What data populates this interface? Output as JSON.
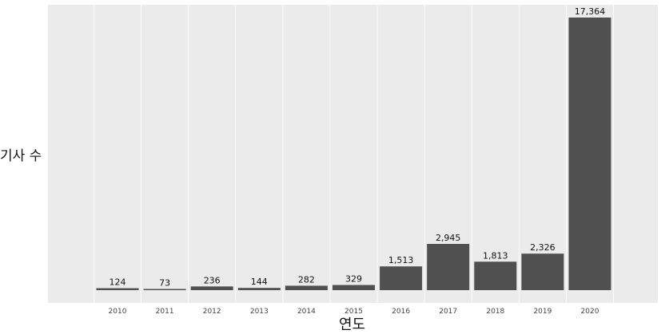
{
  "chart_data": {
    "type": "bar",
    "xlabel": "연도",
    "ylabel": "기사 수",
    "categories": [
      "2010",
      "2011",
      "2012",
      "2013",
      "2014",
      "2015",
      "2016",
      "2017",
      "2018",
      "2019",
      "2020"
    ],
    "values": [
      124,
      73,
      236,
      144,
      282,
      329,
      1513,
      2945,
      1813,
      2326,
      17364
    ],
    "data_labels": [
      "124",
      "73",
      "236",
      "144",
      "282",
      "329",
      "1,513",
      "2,945",
      "1,813",
      "2,326",
      "17,364"
    ],
    "ylim": [
      0,
      17364
    ],
    "y_ticks_shown": false,
    "grid": true,
    "legend": "none",
    "colors": {
      "bar": "#505050",
      "panel": "#ebebeb",
      "grid": "#ffffff",
      "text": "#111111"
    }
  }
}
